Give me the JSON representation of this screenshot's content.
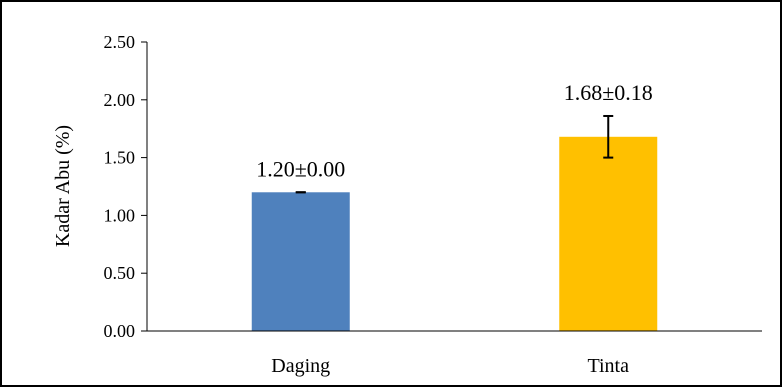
{
  "chart_data": {
    "type": "bar",
    "title": "",
    "xlabel": "",
    "ylabel": "Kadar Abu (%)",
    "ylim": [
      0,
      2.5
    ],
    "yticks": [
      "0.00",
      "0.50",
      "1.00",
      "1.50",
      "2.00",
      "2.50"
    ],
    "grid": false,
    "legend": "none",
    "categories": [
      "Daging",
      "Tinta"
    ],
    "values": [
      1.2,
      1.68
    ],
    "errors": [
      0.0,
      0.18
    ],
    "data_labels": [
      "1.20±0.00",
      "1.68±0.18"
    ],
    "colors": [
      "#4f81bd",
      "#ffc000"
    ]
  }
}
